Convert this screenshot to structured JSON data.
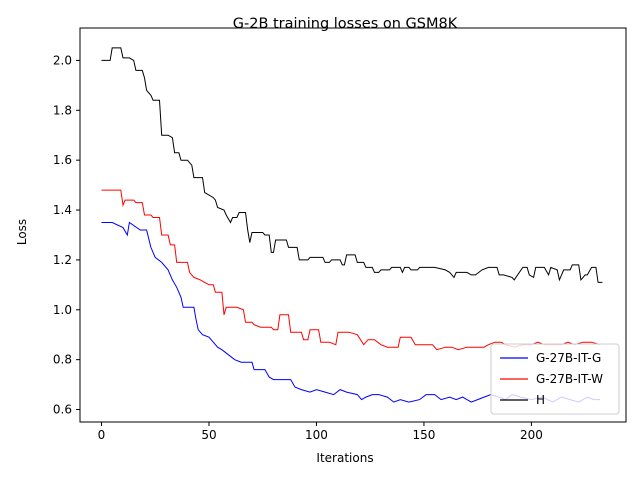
{
  "chart_data": {
    "type": "line",
    "title": "G-2B training losses on GSM8K",
    "xlabel": "Iterations",
    "ylabel": "Loss",
    "xlim": [
      -10,
      244
    ],
    "ylim": [
      0.55,
      2.13
    ],
    "xticks": [
      0,
      50,
      100,
      150,
      200
    ],
    "yticks": [
      0.6,
      0.8,
      1.0,
      1.2,
      1.4,
      1.6,
      1.8,
      2.0
    ],
    "legend_position": "lower-right",
    "grid": false,
    "series": [
      {
        "name": "G-27B-IT-G",
        "color": "#0000ff",
        "points": [
          [
            0,
            1.35
          ],
          [
            5,
            1.35
          ],
          [
            10,
            1.33
          ],
          [
            12,
            1.3
          ],
          [
            13,
            1.35
          ],
          [
            18,
            1.32
          ],
          [
            21,
            1.32
          ],
          [
            23,
            1.25
          ],
          [
            25,
            1.21
          ],
          [
            28,
            1.19
          ],
          [
            31,
            1.16
          ],
          [
            33,
            1.12
          ],
          [
            35,
            1.09
          ],
          [
            37,
            1.05
          ],
          [
            38,
            1.01
          ],
          [
            43,
            1.01
          ],
          [
            44,
            0.96
          ],
          [
            45,
            0.92
          ],
          [
            47,
            0.9
          ],
          [
            50,
            0.89
          ],
          [
            52,
            0.87
          ],
          [
            54,
            0.85
          ],
          [
            56,
            0.84
          ],
          [
            59,
            0.82
          ],
          [
            62,
            0.8
          ],
          [
            65,
            0.79
          ],
          [
            70,
            0.79
          ],
          [
            71,
            0.76
          ],
          [
            74,
            0.76
          ],
          [
            76,
            0.76
          ],
          [
            78,
            0.73
          ],
          [
            80,
            0.72
          ],
          [
            82,
            0.72
          ],
          [
            88,
            0.72
          ],
          [
            90,
            0.69
          ],
          [
            93,
            0.68
          ],
          [
            97,
            0.67
          ],
          [
            100,
            0.68
          ],
          [
            104,
            0.67
          ],
          [
            108,
            0.66
          ],
          [
            111,
            0.68
          ],
          [
            114,
            0.67
          ],
          [
            119,
            0.66
          ],
          [
            121,
            0.64
          ],
          [
            123,
            0.65
          ],
          [
            126,
            0.66
          ],
          [
            129,
            0.66
          ],
          [
            133,
            0.65
          ],
          [
            136,
            0.63
          ],
          [
            139,
            0.64
          ],
          [
            143,
            0.63
          ],
          [
            148,
            0.64
          ],
          [
            151,
            0.66
          ],
          [
            155,
            0.66
          ],
          [
            158,
            0.64
          ],
          [
            162,
            0.65
          ],
          [
            165,
            0.64
          ],
          [
            168,
            0.65
          ],
          [
            172,
            0.63
          ],
          [
            175,
            0.64
          ],
          [
            178,
            0.65
          ],
          [
            181,
            0.66
          ],
          [
            185,
            0.65
          ],
          [
            188,
            0.64
          ],
          [
            191,
            0.66
          ],
          [
            195,
            0.65
          ],
          [
            200,
            0.64
          ],
          [
            205,
            0.65
          ],
          [
            210,
            0.63
          ],
          [
            214,
            0.65
          ],
          [
            218,
            0.64
          ],
          [
            222,
            0.63
          ],
          [
            226,
            0.65
          ],
          [
            229,
            0.64
          ],
          [
            232,
            0.64
          ]
        ]
      },
      {
        "name": "G-27B-IT-W",
        "color": "#ff0000",
        "points": [
          [
            0,
            1.48
          ],
          [
            5,
            1.48
          ],
          [
            9,
            1.48
          ],
          [
            10,
            1.42
          ],
          [
            11,
            1.44
          ],
          [
            15,
            1.44
          ],
          [
            16,
            1.43
          ],
          [
            19,
            1.43
          ],
          [
            20,
            1.38
          ],
          [
            23,
            1.38
          ],
          [
            24,
            1.37
          ],
          [
            27,
            1.37
          ],
          [
            28,
            1.3
          ],
          [
            31,
            1.3
          ],
          [
            32,
            1.26
          ],
          [
            34,
            1.26
          ],
          [
            35,
            1.19
          ],
          [
            40,
            1.19
          ],
          [
            41,
            1.15
          ],
          [
            43,
            1.13
          ],
          [
            46,
            1.12
          ],
          [
            48,
            1.11
          ],
          [
            50,
            1.1
          ],
          [
            52,
            1.1
          ],
          [
            53,
            1.07
          ],
          [
            56,
            1.07
          ],
          [
            57,
            0.98
          ],
          [
            58,
            1.01
          ],
          [
            63,
            1.01
          ],
          [
            66,
            1.0
          ],
          [
            67,
            0.95
          ],
          [
            70,
            0.95
          ],
          [
            71,
            0.94
          ],
          [
            74,
            0.93
          ],
          [
            79,
            0.93
          ],
          [
            80,
            0.92
          ],
          [
            82,
            0.92
          ],
          [
            83,
            0.98
          ],
          [
            87,
            0.98
          ],
          [
            88,
            0.91
          ],
          [
            93,
            0.91
          ],
          [
            94,
            0.88
          ],
          [
            96,
            0.88
          ],
          [
            97,
            0.92
          ],
          [
            101,
            0.92
          ],
          [
            102,
            0.87
          ],
          [
            106,
            0.87
          ],
          [
            109,
            0.86
          ],
          [
            110,
            0.91
          ],
          [
            115,
            0.91
          ],
          [
            119,
            0.9
          ],
          [
            122,
            0.86
          ],
          [
            124,
            0.88
          ],
          [
            127,
            0.88
          ],
          [
            130,
            0.86
          ],
          [
            133,
            0.85
          ],
          [
            138,
            0.85
          ],
          [
            139,
            0.89
          ],
          [
            144,
            0.89
          ],
          [
            146,
            0.86
          ],
          [
            150,
            0.86
          ],
          [
            154,
            0.86
          ],
          [
            156,
            0.84
          ],
          [
            160,
            0.85
          ],
          [
            163,
            0.85
          ],
          [
            166,
            0.84
          ],
          [
            170,
            0.85
          ],
          [
            174,
            0.85
          ],
          [
            178,
            0.85
          ],
          [
            180,
            0.86
          ],
          [
            183,
            0.87
          ],
          [
            186,
            0.87
          ],
          [
            188,
            0.86
          ],
          [
            192,
            0.85
          ],
          [
            196,
            0.86
          ],
          [
            200,
            0.86
          ],
          [
            203,
            0.87
          ],
          [
            206,
            0.86
          ],
          [
            210,
            0.86
          ],
          [
            214,
            0.86
          ],
          [
            217,
            0.87
          ],
          [
            220,
            0.86
          ],
          [
            224,
            0.87
          ],
          [
            228,
            0.87
          ],
          [
            232,
            0.86
          ]
        ]
      },
      {
        "name": "H",
        "color": "#000000",
        "points": [
          [
            0,
            2.0
          ],
          [
            4,
            2.0
          ],
          [
            5,
            2.05
          ],
          [
            9,
            2.05
          ],
          [
            10,
            2.01
          ],
          [
            13,
            2.01
          ],
          [
            15,
            2.0
          ],
          [
            16,
            1.96
          ],
          [
            19,
            1.96
          ],
          [
            20,
            1.93
          ],
          [
            21,
            1.88
          ],
          [
            23,
            1.86
          ],
          [
            24,
            1.84
          ],
          [
            27,
            1.84
          ],
          [
            28,
            1.7
          ],
          [
            31,
            1.7
          ],
          [
            33,
            1.69
          ],
          [
            34,
            1.63
          ],
          [
            36,
            1.63
          ],
          [
            37,
            1.6
          ],
          [
            40,
            1.6
          ],
          [
            42,
            1.58
          ],
          [
            43,
            1.53
          ],
          [
            47,
            1.53
          ],
          [
            48,
            1.47
          ],
          [
            52,
            1.45
          ],
          [
            53,
            1.44
          ],
          [
            54,
            1.41
          ],
          [
            57,
            1.4
          ],
          [
            58,
            1.38
          ],
          [
            60,
            1.35
          ],
          [
            61,
            1.37
          ],
          [
            63,
            1.37
          ],
          [
            64,
            1.39
          ],
          [
            67,
            1.39
          ],
          [
            68,
            1.32
          ],
          [
            69,
            1.27
          ],
          [
            70,
            1.31
          ],
          [
            75,
            1.31
          ],
          [
            76,
            1.3
          ],
          [
            78,
            1.3
          ],
          [
            79,
            1.23
          ],
          [
            80,
            1.23
          ],
          [
            81,
            1.28
          ],
          [
            86,
            1.28
          ],
          [
            87,
            1.25
          ],
          [
            88,
            1.25
          ],
          [
            91,
            1.25
          ],
          [
            92,
            1.2
          ],
          [
            96,
            1.2
          ],
          [
            97,
            1.21
          ],
          [
            103,
            1.21
          ],
          [
            104,
            1.19
          ],
          [
            106,
            1.19
          ],
          [
            107,
            1.2
          ],
          [
            111,
            1.2
          ],
          [
            112,
            1.18
          ],
          [
            113,
            1.18
          ],
          [
            114,
            1.22
          ],
          [
            118,
            1.22
          ],
          [
            119,
            1.19
          ],
          [
            122,
            1.19
          ],
          [
            123,
            1.17
          ],
          [
            126,
            1.17
          ],
          [
            127,
            1.15
          ],
          [
            129,
            1.15
          ],
          [
            130,
            1.16
          ],
          [
            134,
            1.16
          ],
          [
            135,
            1.17
          ],
          [
            139,
            1.17
          ],
          [
            140,
            1.15
          ],
          [
            141,
            1.17
          ],
          [
            143,
            1.17
          ],
          [
            144,
            1.16
          ],
          [
            147,
            1.16
          ],
          [
            148,
            1.17
          ],
          [
            155,
            1.17
          ],
          [
            160,
            1.16
          ],
          [
            162,
            1.15
          ],
          [
            163,
            1.14
          ],
          [
            164,
            1.13
          ],
          [
            165,
            1.15
          ],
          [
            170,
            1.15
          ],
          [
            172,
            1.14
          ],
          [
            174,
            1.14
          ],
          [
            177,
            1.16
          ],
          [
            180,
            1.17
          ],
          [
            184,
            1.17
          ],
          [
            185,
            1.14
          ],
          [
            187,
            1.14
          ],
          [
            191,
            1.13
          ],
          [
            192,
            1.12
          ],
          [
            196,
            1.17
          ],
          [
            198,
            1.17
          ],
          [
            199,
            1.14
          ],
          [
            201,
            1.13
          ],
          [
            202,
            1.17
          ],
          [
            206,
            1.17
          ],
          [
            208,
            1.14
          ],
          [
            209,
            1.17
          ],
          [
            212,
            1.16
          ],
          [
            213,
            1.12
          ],
          [
            215,
            1.16
          ],
          [
            218,
            1.16
          ],
          [
            219,
            1.18
          ],
          [
            222,
            1.18
          ],
          [
            223,
            1.12
          ],
          [
            225,
            1.14
          ],
          [
            226,
            1.14
          ],
          [
            228,
            1.17
          ],
          [
            230,
            1.17
          ],
          [
            231,
            1.11
          ],
          [
            233,
            1.11
          ]
        ]
      }
    ]
  }
}
